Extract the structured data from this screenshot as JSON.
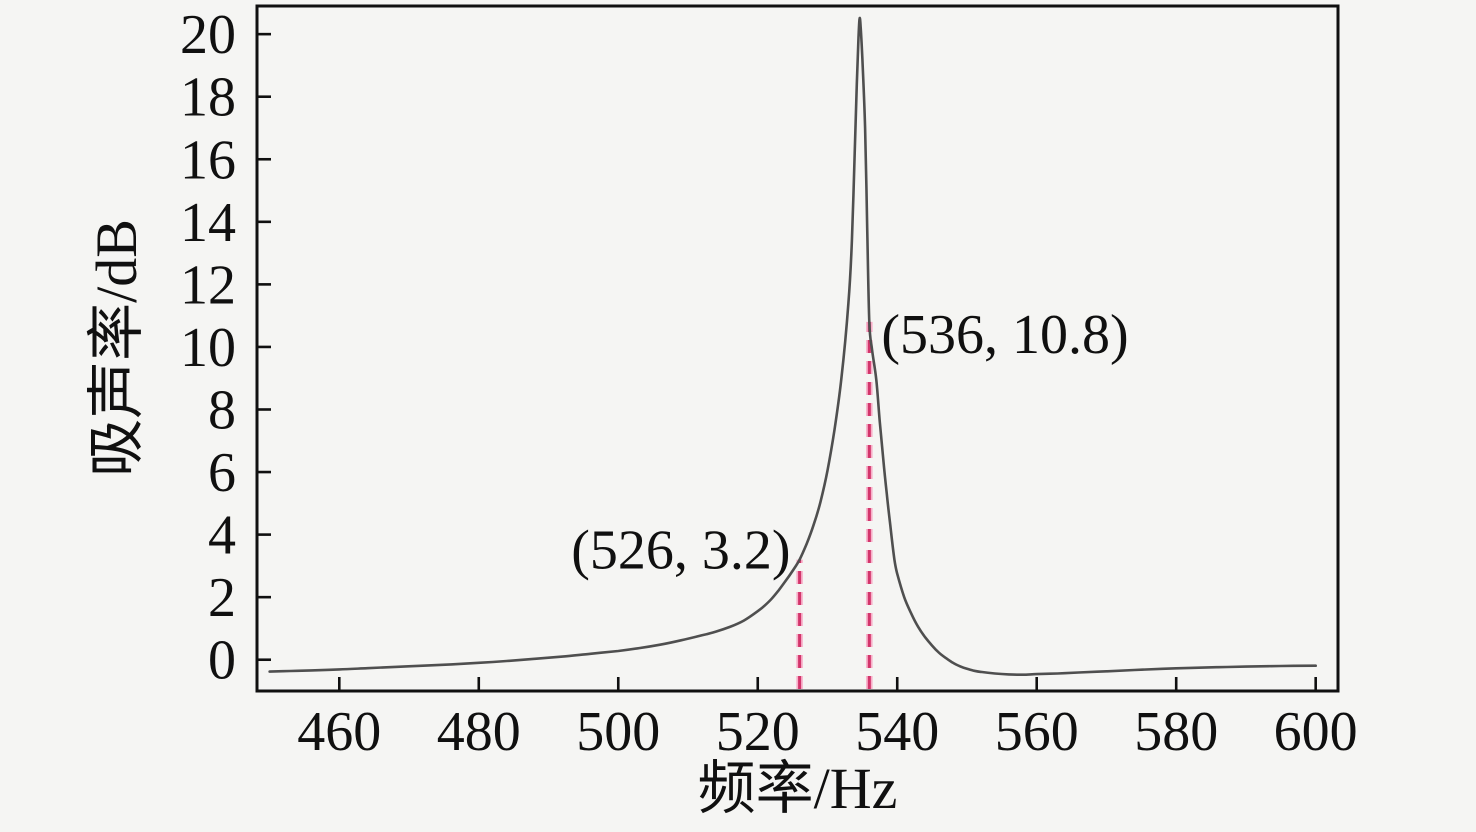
{
  "figure": {
    "background": "#f5f5f3",
    "frame_color": "#101010",
    "curve_color": "#4f4f4f",
    "marker_line_color": "#d2356b",
    "marker_halo_color": "#f8afc9",
    "text_color": "#101010"
  },
  "chart_data": {
    "type": "line",
    "title": "",
    "xlabel": "频率/Hz",
    "ylabel": "吸声率/dB",
    "xlim": [
      448.2,
      603.2
    ],
    "ylim": [
      -1.0,
      20.9
    ],
    "x_ticks": [
      460,
      480,
      500,
      520,
      540,
      560,
      580,
      600
    ],
    "y_ticks": [
      0,
      2,
      4,
      6,
      8,
      10,
      12,
      14,
      16,
      18,
      20
    ],
    "grid": false,
    "legend": null,
    "peak": {
      "x": 534.6,
      "y": 20.5
    },
    "series": [
      {
        "name": "sound-absorption-curve",
        "points": [
          [
            450,
            -0.38
          ],
          [
            453,
            -0.36
          ],
          [
            456,
            -0.34
          ],
          [
            460,
            -0.31
          ],
          [
            464,
            -0.27
          ],
          [
            468,
            -0.23
          ],
          [
            472,
            -0.19
          ],
          [
            476,
            -0.15
          ],
          [
            480,
            -0.1
          ],
          [
            484,
            -0.04
          ],
          [
            488,
            0.03
          ],
          [
            492,
            0.1
          ],
          [
            496,
            0.19
          ],
          [
            500,
            0.28
          ],
          [
            503,
            0.37
          ],
          [
            506,
            0.48
          ],
          [
            509,
            0.62
          ],
          [
            512,
            0.78
          ],
          [
            514,
            0.9
          ],
          [
            516,
            1.05
          ],
          [
            518,
            1.25
          ],
          [
            520,
            1.55
          ],
          [
            521,
            1.73
          ],
          [
            522,
            1.95
          ],
          [
            523,
            2.22
          ],
          [
            524,
            2.52
          ],
          [
            525,
            2.84
          ],
          [
            526,
            3.2
          ],
          [
            527,
            3.7
          ],
          [
            528,
            4.3
          ],
          [
            529,
            5.05
          ],
          [
            530,
            6.05
          ],
          [
            531,
            7.35
          ],
          [
            532,
            9.0
          ],
          [
            533,
            11.4
          ],
          [
            533.5,
            13.4
          ],
          [
            533.9,
            16.2
          ],
          [
            534.2,
            18.4
          ],
          [
            534.45,
            19.9
          ],
          [
            534.6,
            20.5
          ],
          [
            534.75,
            20.25
          ],
          [
            535.0,
            19.2
          ],
          [
            535.4,
            17.0
          ],
          [
            535.7,
            13.8
          ],
          [
            536,
            10.8
          ],
          [
            536.4,
            9.9
          ],
          [
            537,
            8.95
          ],
          [
            537.5,
            7.6
          ],
          [
            538,
            6.4
          ],
          [
            538.5,
            5.3
          ],
          [
            539,
            4.3
          ],
          [
            539.6,
            3.2
          ],
          [
            540,
            2.75
          ],
          [
            541,
            2.0
          ],
          [
            542,
            1.48
          ],
          [
            543,
            1.05
          ],
          [
            544,
            0.72
          ],
          [
            545,
            0.45
          ],
          [
            546,
            0.22
          ],
          [
            547,
            0.05
          ],
          [
            548,
            -0.1
          ],
          [
            549,
            -0.21
          ],
          [
            550,
            -0.29
          ],
          [
            551,
            -0.35
          ],
          [
            552,
            -0.39
          ],
          [
            554,
            -0.44
          ],
          [
            556,
            -0.47
          ],
          [
            558,
            -0.48
          ],
          [
            560,
            -0.46
          ],
          [
            563,
            -0.44
          ],
          [
            566,
            -0.41
          ],
          [
            570,
            -0.37
          ],
          [
            574,
            -0.33
          ],
          [
            578,
            -0.29
          ],
          [
            582,
            -0.26
          ],
          [
            586,
            -0.24
          ],
          [
            590,
            -0.22
          ],
          [
            595,
            -0.2
          ],
          [
            600,
            -0.19
          ]
        ]
      }
    ],
    "annotations": [
      {
        "label": "(526, 3.2)",
        "x": 526,
        "y": 3.2,
        "side": "left"
      },
      {
        "label": "(536, 10.8)",
        "x": 536,
        "y": 10.8,
        "side": "right"
      }
    ]
  }
}
